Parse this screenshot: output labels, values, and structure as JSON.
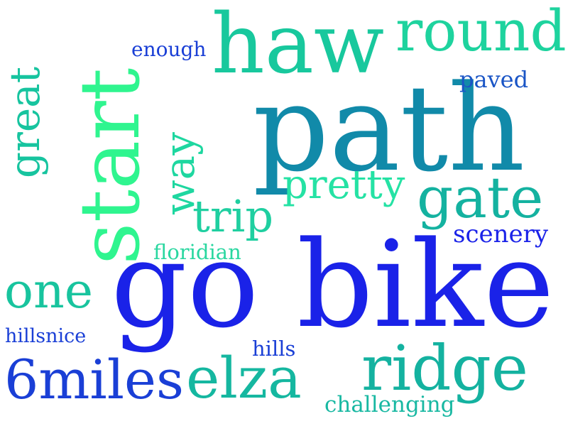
{
  "word_cloud": {
    "colors": {
      "blue": "#1a22e8",
      "teal_blue": "#118aa9",
      "teal": "#14b2a0",
      "green": "#1ed8a0",
      "bright_green": "#2ff58f",
      "mint": "#25e2a4"
    },
    "words": [
      {
        "id": "path",
        "text": "path",
        "color": "#118aa9"
      },
      {
        "id": "go-bike",
        "text": "go bike",
        "color": "#1a22e8"
      },
      {
        "id": "haw",
        "text": "haw",
        "color": "#18c89d"
      },
      {
        "id": "start",
        "text": "start",
        "color": "#2ff58f"
      },
      {
        "id": "round",
        "text": "round",
        "color": "#1ed39e"
      },
      {
        "id": "gate",
        "text": "gate",
        "color": "#14b2a0"
      },
      {
        "id": "ridge",
        "text": "ridge",
        "color": "#14b2a0"
      },
      {
        "id": "elza",
        "text": "elza",
        "color": "#15b7a0"
      },
      {
        "id": "6miles",
        "text": "6miles",
        "color": "#1a3fd6"
      },
      {
        "id": "one",
        "text": "one",
        "color": "#18c49e"
      },
      {
        "id": "trip",
        "text": "trip",
        "color": "#1fcfa0"
      },
      {
        "id": "pretty",
        "text": "pretty",
        "color": "#25e2a4"
      },
      {
        "id": "way",
        "text": "way",
        "color": "#1ed7a0"
      },
      {
        "id": "great",
        "text": "great",
        "color": "#17c49f"
      },
      {
        "id": "enough",
        "text": "enough",
        "color": "#1a3fd6"
      },
      {
        "id": "paved",
        "text": "paved",
        "color": "#1a55c6"
      },
      {
        "id": "scenery",
        "text": "scenery",
        "color": "#1a22e8"
      },
      {
        "id": "floridian",
        "text": "floridian",
        "color": "#2ad7a0"
      },
      {
        "id": "hillsnice",
        "text": "hillsnice",
        "color": "#1a3fd6"
      },
      {
        "id": "hills",
        "text": "hills",
        "color": "#1a3fd6"
      },
      {
        "id": "challenging",
        "text": "challenging",
        "color": "#18b8a2"
      }
    ]
  }
}
